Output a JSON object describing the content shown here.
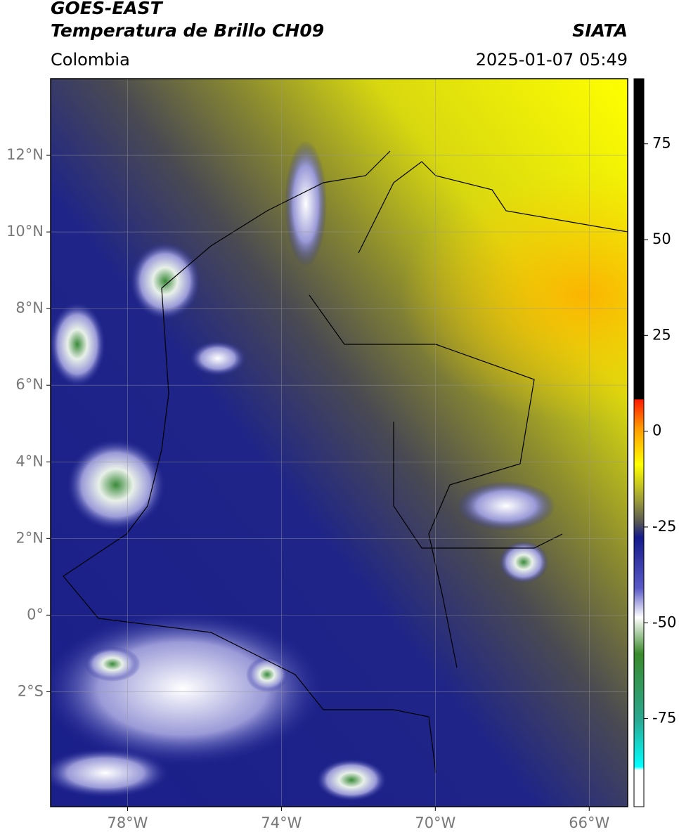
{
  "header": {
    "satellite": "GOES-EAST",
    "product": "Temperatura de Brillo CH09",
    "source": "SIATA",
    "region": "Colombia",
    "datetime": "2025-01-07 05:49"
  },
  "map": {
    "xlim": [
      -80,
      -65
    ],
    "ylim": [
      -5,
      14
    ],
    "xticks": [
      {
        "value": -78,
        "label": "78°W"
      },
      {
        "value": -74,
        "label": "74°W"
      },
      {
        "value": -70,
        "label": "70°W"
      },
      {
        "value": -66,
        "label": "66°W"
      }
    ],
    "yticks": [
      {
        "value": 12,
        "label": "12°N"
      },
      {
        "value": 10,
        "label": "10°N"
      },
      {
        "value": 8,
        "label": "8°N"
      },
      {
        "value": 6,
        "label": "6°N"
      },
      {
        "value": 4,
        "label": "4°N"
      },
      {
        "value": 2,
        "label": "2°N"
      },
      {
        "value": 0,
        "label": "0°"
      },
      {
        "value": -2,
        "label": "2°S"
      }
    ],
    "grid": true
  },
  "colorbar": {
    "lim": [
      -98,
      92
    ],
    "ticks": [
      75,
      50,
      25,
      0,
      -25,
      -50,
      -75
    ]
  }
}
